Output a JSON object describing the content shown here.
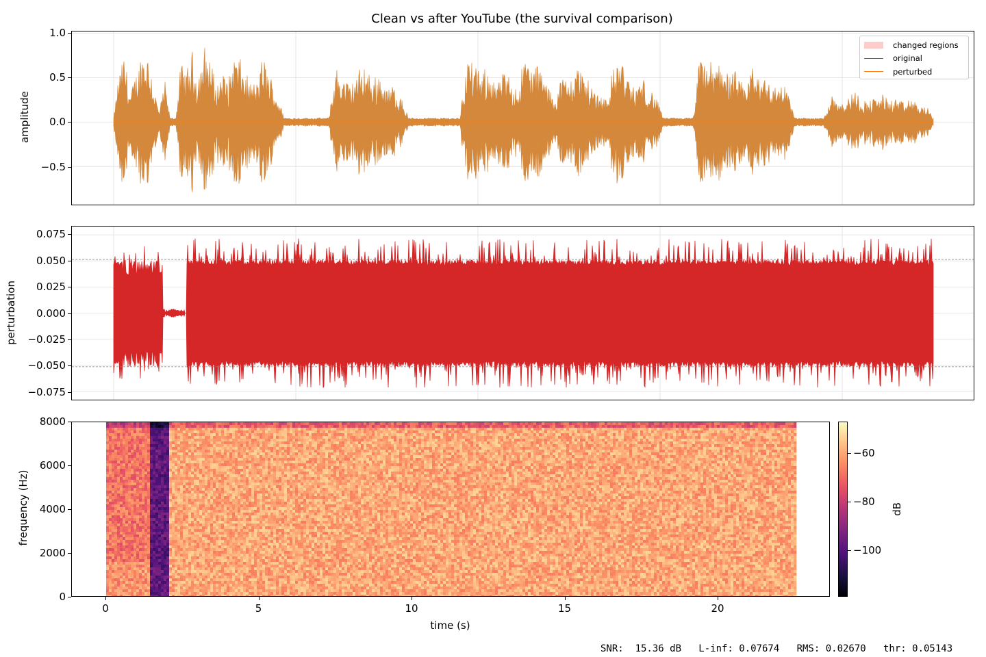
{
  "figure": {
    "title": "Clean vs after YouTube (the survival comparison)",
    "footer": "SNR:  15.36 dB   L-inf: 0.07674   RMS: 0.02670   thr: 0.05143"
  },
  "colors": {
    "original": "#1f77b4",
    "perturbed": "#ff7f0e",
    "overlap": "#d4883b",
    "perturbation": "#d62728",
    "changed_regions": "#ffcccc",
    "threshold_line": "#808080",
    "grid": "#e6e6e6"
  },
  "chart_data": [
    {
      "type": "line",
      "name": "waveform",
      "title": "Clean vs after YouTube (the survival comparison)",
      "xlabel": "",
      "ylabel": "amplitude",
      "ylim": [
        -0.93,
        1.02
      ],
      "xlim": [
        -1.1,
        23.6
      ],
      "yticks": [
        "1.0",
        "0.5",
        "0.0",
        "−0.5"
      ],
      "ytick_values": [
        1.0,
        0.5,
        0.0,
        -0.5
      ],
      "xtick_values": [
        0,
        5,
        10,
        15,
        20
      ],
      "grid": true,
      "legend": {
        "position": "upper right",
        "entries": [
          "changed regions",
          "original",
          "perturbed"
        ]
      },
      "series": [
        {
          "name": "original",
          "color": "#1f77b4",
          "description": "speech waveform, ~22.5 s, peaks near ±0.9"
        },
        {
          "name": "perturbed",
          "color": "#ff7f0e",
          "description": "near-identical to original with noise floor ~±0.05 in silent gaps"
        }
      ],
      "envelope": {
        "t": [
          0.0,
          0.15,
          0.3,
          0.45,
          0.6,
          0.8,
          0.95,
          1.1,
          1.25,
          1.4,
          1.55,
          1.7,
          1.85,
          2.0,
          2.15,
          2.3,
          2.5,
          2.65,
          2.8,
          3.0,
          3.15,
          3.3,
          3.5,
          3.7,
          3.9,
          4.1,
          4.3,
          4.5,
          4.7,
          4.9,
          5.1,
          5.3,
          5.5,
          5.7,
          5.9,
          6.1,
          6.3,
          6.5,
          6.7,
          6.9,
          7.1,
          7.3,
          7.5,
          7.7,
          7.9,
          8.1,
          8.3,
          8.5,
          8.7,
          8.9,
          9.1,
          9.3,
          9.5,
          9.7,
          9.9,
          10.1,
          10.3,
          10.5,
          10.7,
          10.9,
          11.1,
          11.3,
          11.5,
          11.7,
          11.9,
          12.1,
          12.3,
          12.5,
          12.7,
          12.9,
          13.1,
          13.3,
          13.5,
          13.7,
          13.9,
          14.1,
          14.3,
          14.5,
          14.7,
          14.9,
          15.1,
          15.3,
          15.5,
          15.7,
          15.9,
          16.1,
          16.3,
          16.5,
          16.7,
          16.9,
          17.1,
          17.3,
          17.5,
          17.7,
          17.9,
          18.1,
          18.3,
          18.5,
          18.7,
          18.9,
          19.1,
          19.3,
          19.5,
          19.7,
          19.9,
          20.1,
          20.3,
          20.5,
          20.7,
          20.9,
          21.1,
          21.3,
          21.5,
          21.7,
          21.9,
          22.1,
          22.3,
          22.5
        ],
        "amp": [
          0.05,
          0.6,
          0.82,
          0.35,
          0.55,
          0.9,
          0.85,
          0.45,
          0.12,
          0.5,
          0.05,
          0.05,
          0.7,
          0.6,
          0.85,
          0.55,
          0.9,
          0.8,
          0.45,
          0.62,
          0.5,
          0.85,
          0.72,
          0.5,
          0.45,
          0.8,
          0.55,
          0.3,
          0.05,
          0.05,
          0.05,
          0.05,
          0.05,
          0.05,
          0.05,
          0.65,
          0.55,
          0.45,
          0.6,
          0.7,
          0.5,
          0.6,
          0.4,
          0.45,
          0.3,
          0.05,
          0.05,
          0.05,
          0.05,
          0.05,
          0.05,
          0.05,
          0.05,
          0.8,
          0.7,
          0.55,
          0.7,
          0.45,
          0.6,
          0.55,
          0.4,
          0.85,
          0.65,
          0.7,
          0.45,
          0.3,
          0.55,
          0.5,
          0.72,
          0.6,
          0.45,
          0.35,
          0.3,
          0.6,
          0.85,
          0.55,
          0.4,
          0.55,
          0.4,
          0.3,
          0.05,
          0.05,
          0.05,
          0.05,
          0.05,
          0.8,
          0.75,
          0.65,
          0.85,
          0.55,
          0.6,
          0.4,
          0.7,
          0.55,
          0.65,
          0.4,
          0.5,
          0.4,
          0.05,
          0.05,
          0.05,
          0.05,
          0.05,
          0.35,
          0.3,
          0.25,
          0.38,
          0.3,
          0.25,
          0.3,
          0.35,
          0.25,
          0.3,
          0.22,
          0.3,
          0.2,
          0.2,
          0.05
        ]
      }
    },
    {
      "type": "line",
      "name": "perturbation",
      "xlabel": "",
      "ylabel": "perturbation",
      "ylim": [
        -0.083,
        0.083
      ],
      "xlim": [
        -1.1,
        23.6
      ],
      "yticks": [
        "0.075",
        "0.050",
        "0.025",
        "0.000",
        "−0.025",
        "−0.050",
        "−0.075"
      ],
      "ytick_values": [
        0.075,
        0.05,
        0.025,
        0.0,
        -0.025,
        -0.05,
        -0.075
      ],
      "xtick_values": [
        0,
        5,
        10,
        15,
        20
      ],
      "grid": true,
      "threshold": 0.05143,
      "threshold_lines": [
        0.05143,
        -0.05143
      ],
      "series": [
        {
          "name": "perturbation",
          "color": "#d62728"
        }
      ],
      "segments": [
        {
          "t0": 0.0,
          "t1": 1.35,
          "amp": 0.05,
          "peak": 0.068
        },
        {
          "t0": 1.35,
          "t1": 1.95,
          "amp": 0.003,
          "peak": 0.01
        },
        {
          "t0": 1.95,
          "t1": 2.0,
          "amp": 0.0,
          "peak": 0.0
        },
        {
          "t0": 2.0,
          "t1": 22.5,
          "amp": 0.051,
          "peak": 0.07674
        }
      ],
      "annotations": [
        "dashed threshold lines at ±0.05143"
      ]
    },
    {
      "type": "heatmap",
      "name": "spectrogram",
      "xlabel": "time (s)",
      "ylabel": "frequency (Hz)",
      "xlim": [
        -1.1,
        23.6
      ],
      "ylim": [
        0,
        8000
      ],
      "xticks": [
        "0",
        "5",
        "10",
        "15",
        "20"
      ],
      "xtick_values": [
        0,
        5,
        10,
        15,
        20
      ],
      "yticks": [
        "8000",
        "6000",
        "4000",
        "2000",
        "0"
      ],
      "ytick_values": [
        8000,
        6000,
        4000,
        2000,
        0
      ],
      "data_extent_time": [
        0,
        22.5
      ],
      "colormap": "magma",
      "colorbar": {
        "label": "dB",
        "ticks": [
          "−60",
          "−80",
          "−100"
        ],
        "tick_values": [
          -60,
          -80,
          -100
        ],
        "range": [
          -119,
          -47
        ]
      },
      "regions": [
        {
          "t0": 0.0,
          "t1": 1.35,
          "level_db": -68,
          "description": "speech-like banded energy"
        },
        {
          "t0": 1.35,
          "t1": 2.0,
          "level_db": -98,
          "description": "dark quiet band with faint harmonics"
        },
        {
          "t0": 2.0,
          "t1": 22.5,
          "level_db": -60,
          "description": "uniform broadband noise"
        }
      ]
    }
  ]
}
